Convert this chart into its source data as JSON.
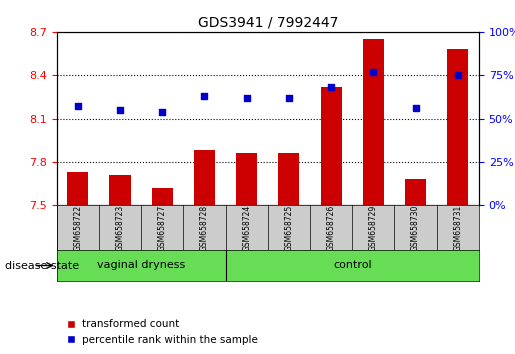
{
  "title": "GDS3941 / 7992447",
  "samples": [
    "GSM658722",
    "GSM658723",
    "GSM658727",
    "GSM658728",
    "GSM658724",
    "GSM658725",
    "GSM658726",
    "GSM658729",
    "GSM658730",
    "GSM658731"
  ],
  "transformed_count": [
    7.73,
    7.71,
    7.62,
    7.88,
    7.86,
    7.86,
    8.32,
    8.65,
    7.68,
    8.58
  ],
  "percentile_rank": [
    57,
    55,
    54,
    63,
    62,
    62,
    68,
    77,
    56,
    75
  ],
  "left_ylim": [
    7.5,
    8.7
  ],
  "right_ylim": [
    0,
    100
  ],
  "left_yticks": [
    7.5,
    7.8,
    8.1,
    8.4,
    8.7
  ],
  "right_yticks": [
    0,
    25,
    50,
    75,
    100
  ],
  "bar_color": "#cc0000",
  "dot_color": "#0000cc",
  "legend_label_red": "transformed count",
  "legend_label_blue": "percentile rank within the sample",
  "disease_state_label": "disease state",
  "group_green": "#66dd55"
}
